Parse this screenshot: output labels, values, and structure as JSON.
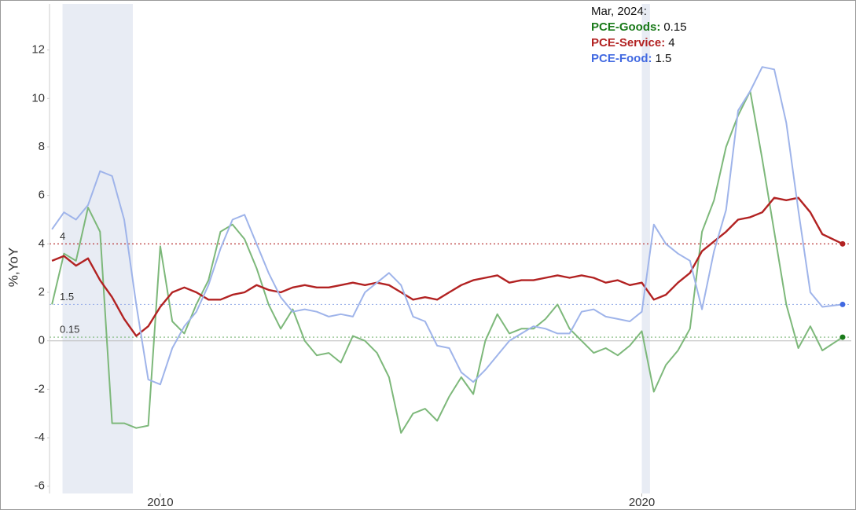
{
  "chart_data": {
    "type": "line",
    "y_label": "%,YoY",
    "annotation": "Mar, 2024:",
    "xlim": [
      2007.7,
      2024.35
    ],
    "xticks": [
      2010,
      2020
    ],
    "ylim": [
      -6.3,
      13.9
    ],
    "yticks": [
      -6,
      -4,
      -2,
      0,
      2,
      4,
      6,
      8,
      10,
      12
    ],
    "shaded_periods": [
      [
        2007.97,
        2009.43
      ],
      [
        2020.0,
        2020.17
      ]
    ],
    "shade_color": "#e8ecf4",
    "x": [
      2007.75,
      2008.0,
      2008.25,
      2008.5,
      2008.75,
      2009.0,
      2009.25,
      2009.5,
      2009.75,
      2010.0,
      2010.25,
      2010.5,
      2010.75,
      2011.0,
      2011.25,
      2011.5,
      2011.75,
      2012.0,
      2012.25,
      2012.5,
      2012.75,
      2013.0,
      2013.25,
      2013.5,
      2013.75,
      2014.0,
      2014.25,
      2014.5,
      2014.75,
      2015.0,
      2015.25,
      2015.5,
      2015.75,
      2016.0,
      2016.25,
      2016.5,
      2016.75,
      2017.0,
      2017.25,
      2017.5,
      2017.75,
      2018.0,
      2018.25,
      2018.5,
      2018.75,
      2019.0,
      2019.25,
      2019.5,
      2019.75,
      2020.0,
      2020.25,
      2020.5,
      2020.75,
      2021.0,
      2021.25,
      2021.5,
      2021.75,
      2022.0,
      2022.25,
      2022.5,
      2022.75,
      2023.0,
      2023.25,
      2023.5,
      2023.75,
      2024.17
    ],
    "series": [
      {
        "name": "PCE-Goods",
        "color": "#7db87a",
        "legend_color": "#1a7a1a",
        "values": [
          1.5,
          3.6,
          3.3,
          5.5,
          4.5,
          -3.4,
          -3.4,
          -3.6,
          -3.5,
          3.9,
          0.8,
          0.3,
          1.5,
          2.5,
          4.5,
          4.8,
          4.2,
          3.0,
          1.5,
          0.5,
          1.3,
          0.0,
          -0.6,
          -0.5,
          -0.9,
          0.2,
          0.0,
          -0.5,
          -1.5,
          -3.8,
          -3.0,
          -2.8,
          -3.3,
          -2.3,
          -1.5,
          -2.2,
          0,
          1.1,
          0.3,
          0.5,
          0.5,
          0.9,
          1.5,
          0.5,
          0.0,
          -0.5,
          -0.3,
          -0.6,
          -0.2,
          0.4,
          -2.1,
          -1.0,
          -0.4,
          0.5,
          4.5,
          5.8,
          8.0,
          9.3,
          10.3,
          7.5,
          4.5,
          1.5,
          -0.3,
          0.6,
          -0.4,
          0.15
        ]
      },
      {
        "name": "PCE-Service",
        "color": "#b22222",
        "legend_color": "#b22222",
        "values": [
          3.3,
          3.5,
          3.1,
          3.4,
          2.5,
          1.8,
          0.9,
          0.2,
          0.6,
          1.4,
          2.0,
          2.2,
          2.0,
          1.7,
          1.7,
          1.9,
          2.0,
          2.3,
          2.1,
          2.0,
          2.2,
          2.3,
          2.2,
          2.2,
          2.3,
          2.4,
          2.3,
          2.4,
          2.3,
          2.0,
          1.7,
          1.8,
          1.7,
          2.0,
          2.3,
          2.5,
          2.6,
          2.7,
          2.4,
          2.5,
          2.5,
          2.6,
          2.7,
          2.6,
          2.7,
          2.6,
          2.4,
          2.5,
          2.3,
          2.4,
          1.7,
          1.9,
          2.4,
          2.8,
          3.7,
          4.1,
          4.5,
          5.0,
          5.1,
          5.3,
          5.9,
          5.8,
          5.9,
          5.3,
          4.4,
          4
        ]
      },
      {
        "name": "PCE-Food",
        "color": "#9fb4ea",
        "legend_color": "#4169e1",
        "values": [
          4.6,
          5.3,
          5.0,
          5.6,
          7.0,
          6.8,
          5.0,
          1.5,
          -1.6,
          -1.8,
          -0.3,
          0.6,
          1.2,
          2.3,
          3.8,
          5.0,
          5.2,
          4.0,
          2.8,
          1.8,
          1.2,
          1.3,
          1.2,
          1.0,
          1.1,
          1.0,
          2.0,
          2.4,
          2.8,
          2.3,
          1.0,
          0.8,
          -0.2,
          -0.3,
          -1.3,
          -1.7,
          -1.2,
          -0.6,
          0,
          0.3,
          0.6,
          0.5,
          0.3,
          0.3,
          1.2,
          1.3,
          1.0,
          0.9,
          0.8,
          1.2,
          4.8,
          4.0,
          3.6,
          3.3,
          1.3,
          3.7,
          5.4,
          9.5,
          10.3,
          11.3,
          11.2,
          9.0,
          5.4,
          2.0,
          1.4,
          1.5
        ]
      }
    ]
  }
}
